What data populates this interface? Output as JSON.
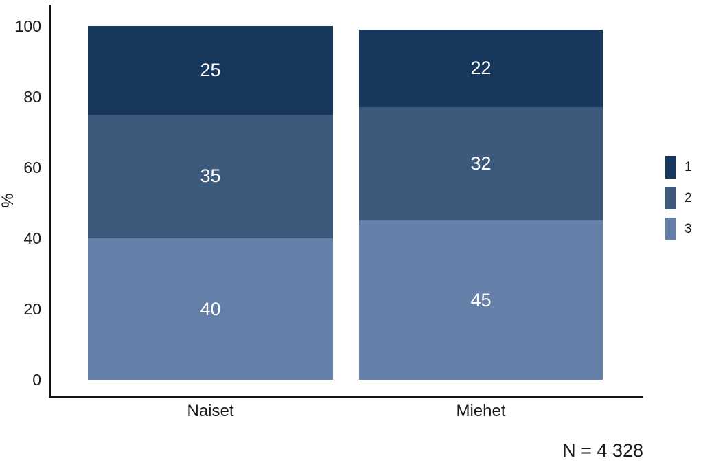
{
  "chart_data": {
    "type": "bar",
    "stacked": true,
    "stack_order": "top-to-bottom",
    "title": "",
    "xlabel": "",
    "ylabel": "%",
    "ylim": [
      0,
      100
    ],
    "yticks": [
      0,
      20,
      40,
      60,
      80,
      100
    ],
    "grid": false,
    "legend_position": "right",
    "categories": [
      "Naiset",
      "Miehet"
    ],
    "series": [
      {
        "name": "1",
        "color": "#17375c",
        "values": [
          25,
          22
        ]
      },
      {
        "name": "2",
        "color": "#3d5a7d",
        "values": [
          35,
          32
        ]
      },
      {
        "name": "3",
        "color": "#6480a8",
        "values": [
          40,
          45
        ]
      }
    ]
  },
  "note": "N = 4 328",
  "colors": {
    "background": "#ffffff",
    "axis": "#111111",
    "tick_text": "#1a1a1a",
    "segment_label_text": "#ffffff"
  }
}
